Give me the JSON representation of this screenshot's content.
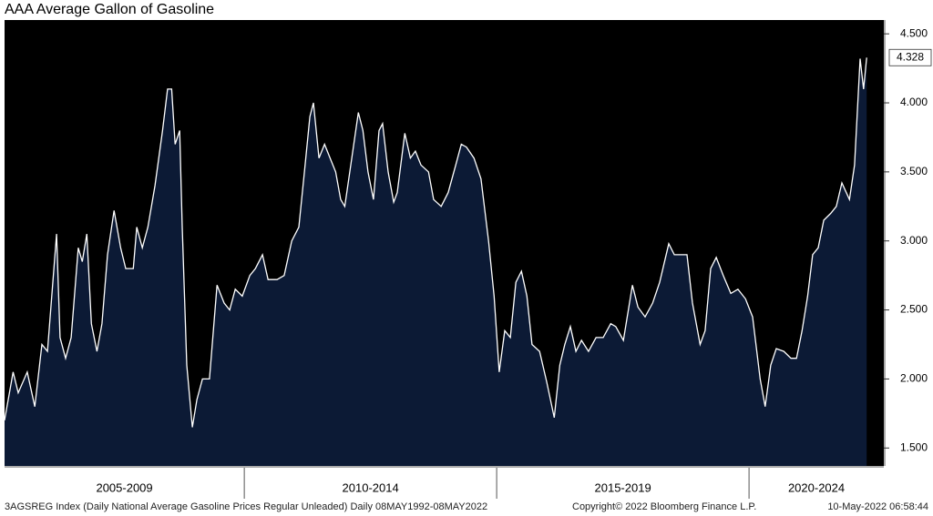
{
  "chart_data": {
    "type": "area",
    "title": "AAA Average Gallon of Gasoline",
    "x": [
      2005.25,
      2005.42,
      2005.52,
      2005.7,
      2005.85,
      2005.99,
      2006.1,
      2006.28,
      2006.35,
      2006.46,
      2006.57,
      2006.71,
      2006.79,
      2006.88,
      2006.97,
      2007.08,
      2007.18,
      2007.29,
      2007.42,
      2007.55,
      2007.65,
      2007.8,
      2007.87,
      2007.98,
      2008.09,
      2008.23,
      2008.38,
      2008.48,
      2008.56,
      2008.63,
      2008.72,
      2008.77,
      2008.86,
      2008.97,
      2009.06,
      2009.17,
      2009.31,
      2009.46,
      2009.6,
      2009.71,
      2009.82,
      2009.96,
      2010.11,
      2010.22,
      2010.36,
      2010.47,
      2010.65,
      2010.79,
      2010.94,
      2011.08,
      2011.19,
      2011.3,
      2011.37,
      2011.48,
      2011.59,
      2011.7,
      2011.81,
      2011.91,
      2011.99,
      2012.13,
      2012.26,
      2012.35,
      2012.45,
      2012.56,
      2012.67,
      2012.74,
      2012.85,
      2012.96,
      2013.03,
      2013.18,
      2013.29,
      2013.39,
      2013.5,
      2013.65,
      2013.75,
      2013.9,
      2014.04,
      2014.19,
      2014.3,
      2014.4,
      2014.55,
      2014.69,
      2014.84,
      2014.95,
      2015.05,
      2015.16,
      2015.27,
      2015.38,
      2015.49,
      2015.6,
      2015.7,
      2015.85,
      2015.99,
      2016.14,
      2016.25,
      2016.35,
      2016.46,
      2016.57,
      2016.68,
      2016.82,
      2016.97,
      2017.11,
      2017.26,
      2017.36,
      2017.51,
      2017.69,
      2017.8,
      2017.94,
      2018.09,
      2018.23,
      2018.41,
      2018.52,
      2018.66,
      2018.77,
      2018.88,
      2019.03,
      2019.13,
      2019.24,
      2019.35,
      2019.49,
      2019.64,
      2019.78,
      2019.93,
      2020.07,
      2020.22,
      2020.32,
      2020.43,
      2020.54,
      2020.69,
      2020.83,
      2020.94,
      2021.05,
      2021.16,
      2021.26,
      2021.37,
      2021.48,
      2021.62,
      2021.73,
      2021.84,
      2021.99,
      2022.09,
      2022.2,
      2022.27,
      2022.33
    ],
    "series": [
      {
        "name": "3AGSREG Index",
        "color": "#ffffff",
        "fill": "#0c1a35",
        "values": [
          1.7,
          2.05,
          1.9,
          2.05,
          1.8,
          2.25,
          2.2,
          3.05,
          2.3,
          2.15,
          2.3,
          2.95,
          2.85,
          3.05,
          2.4,
          2.2,
          2.4,
          2.9,
          3.22,
          2.95,
          2.8,
          2.8,
          3.1,
          2.95,
          3.1,
          3.4,
          3.8,
          4.1,
          4.1,
          3.7,
          3.8,
          3.1,
          2.1,
          1.65,
          1.85,
          2.0,
          2.0,
          2.68,
          2.55,
          2.5,
          2.65,
          2.6,
          2.75,
          2.8,
          2.9,
          2.72,
          2.72,
          2.75,
          3.0,
          3.1,
          3.5,
          3.9,
          4.0,
          3.6,
          3.7,
          3.6,
          3.5,
          3.3,
          3.25,
          3.6,
          3.93,
          3.8,
          3.5,
          3.3,
          3.8,
          3.85,
          3.5,
          3.28,
          3.35,
          3.78,
          3.6,
          3.65,
          3.55,
          3.5,
          3.3,
          3.25,
          3.35,
          3.55,
          3.7,
          3.68,
          3.6,
          3.45,
          3.0,
          2.6,
          2.05,
          2.35,
          2.3,
          2.7,
          2.78,
          2.6,
          2.25,
          2.2,
          1.98,
          1.72,
          2.1,
          2.25,
          2.38,
          2.2,
          2.28,
          2.2,
          2.3,
          2.3,
          2.4,
          2.38,
          2.28,
          2.68,
          2.52,
          2.45,
          2.55,
          2.7,
          2.98,
          2.9,
          2.9,
          2.9,
          2.55,
          2.25,
          2.35,
          2.8,
          2.88,
          2.75,
          2.62,
          2.65,
          2.58,
          2.45,
          2.0,
          1.8,
          2.1,
          2.22,
          2.2,
          2.15,
          2.15,
          2.35,
          2.6,
          2.9,
          2.95,
          3.15,
          3.2,
          3.25,
          3.42,
          3.3,
          3.55,
          4.32,
          4.1,
          4.328
        ],
        "value_labels": [
          null,
          null,
          null,
          null,
          null,
          null,
          null,
          null,
          null,
          null,
          null,
          null,
          null,
          null,
          null,
          null,
          null,
          null,
          null,
          null,
          null,
          null,
          null,
          null,
          null,
          null,
          null,
          null,
          null,
          null,
          null,
          null,
          null,
          null,
          null,
          null,
          null,
          null,
          null,
          null,
          null,
          null,
          null,
          null,
          null,
          null,
          null,
          null,
          null,
          null,
          null,
          null,
          null,
          null,
          null,
          null,
          null,
          null,
          null,
          null,
          null,
          null,
          null,
          null,
          null,
          null,
          null,
          null,
          null,
          null,
          null,
          null,
          null,
          null,
          null,
          null,
          null,
          null,
          null,
          null,
          null,
          null,
          null,
          null,
          null,
          null,
          null,
          null,
          null,
          null,
          null,
          null,
          null,
          null,
          null,
          null,
          null,
          null,
          null,
          null,
          null,
          null,
          null,
          null,
          null,
          null,
          null,
          null,
          null,
          null,
          null,
          null,
          null,
          null,
          null,
          null,
          null,
          null,
          null,
          null,
          null,
          null,
          null,
          null,
          null,
          null,
          null,
          null,
          null,
          null,
          null,
          null,
          null,
          null,
          null,
          null,
          null,
          null,
          null,
          null,
          null,
          null,
          null,
          "4.328"
        ]
      }
    ],
    "xlim": [
      2005.25,
      2022.67
    ],
    "xticks": [
      2010,
      2015,
      2020
    ],
    "x_period_labels": [
      "2005-2009",
      "2010-2014",
      "2015-2019",
      "2020-2024"
    ],
    "ylim": [
      1.37,
      4.6
    ],
    "yticks": [
      {
        "value": 1.5,
        "label": "1.500"
      },
      {
        "value": 2.0,
        "label": "2.000"
      },
      {
        "value": 2.5,
        "label": "2.500"
      },
      {
        "value": 3.0,
        "label": "3.000"
      },
      {
        "value": 3.5,
        "label": "3.500"
      },
      {
        "value": 4.0,
        "label": "4.000"
      },
      {
        "value": 4.5,
        "label": "4.500"
      }
    ],
    "y_axis_side": "right",
    "background": "#000000",
    "footer_left": "3AGSREG Index (Daily National Average Gasoline Prices Regular Unleaded)  Daily 08MAY1992-08MAY2022",
    "footer_center": "Copyright© 2022 Bloomberg Finance L.P.",
    "footer_right": "10-May-2022 06:58:44"
  }
}
